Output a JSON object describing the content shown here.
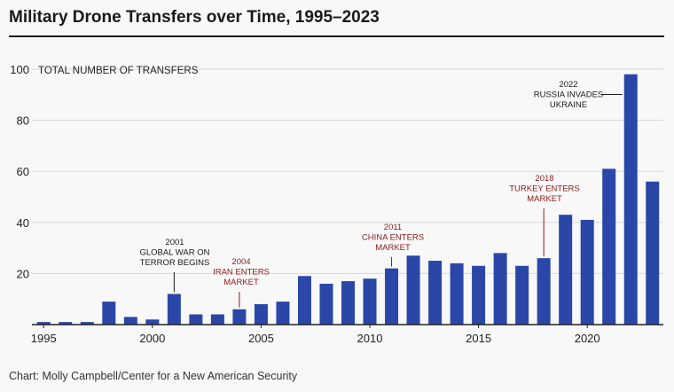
{
  "title": "Military Drone Transfers over Time, 1995–2023",
  "source": "Chart: Molly Campbell/Center for a New American Security",
  "colors": {
    "bar": "#2a47a8",
    "annotation_dark": "#1a1a1a",
    "annotation_red": "#8b1a1a",
    "grid": "#d9d9d9",
    "background": "#f8f8f8"
  },
  "chart_data": {
    "type": "bar",
    "ylabel": "TOTAL NUMBER OF TRANSFERS",
    "ylim": [
      0,
      100
    ],
    "yticks": [
      20,
      40,
      60,
      80,
      100
    ],
    "xticks": [
      1995,
      2000,
      2005,
      2010,
      2015,
      2020
    ],
    "grid": true,
    "categories": [
      1995,
      1996,
      1997,
      1998,
      1999,
      2000,
      2001,
      2002,
      2003,
      2004,
      2005,
      2006,
      2007,
      2008,
      2009,
      2010,
      2011,
      2012,
      2013,
      2014,
      2015,
      2016,
      2017,
      2018,
      2019,
      2020,
      2021,
      2022,
      2023
    ],
    "values": [
      1,
      1,
      1,
      9,
      3,
      2,
      12,
      4,
      4,
      6,
      8,
      9,
      19,
      16,
      17,
      18,
      22,
      27,
      25,
      24,
      23,
      28,
      23,
      26,
      43,
      41,
      61,
      98,
      56
    ],
    "annotations": [
      {
        "x": 2001,
        "lines": [
          "2001",
          "GLOBAL WAR ON",
          "TERROR BEGINS"
        ],
        "color": "dark"
      },
      {
        "x": 2004,
        "lines": [
          "2004",
          "IRAN ENTERS",
          "MARKET"
        ],
        "color": "red"
      },
      {
        "x": 2011,
        "lines": [
          "2011",
          "CHINA ENTERS",
          "MARKET"
        ],
        "color": "red"
      },
      {
        "x": 2018,
        "lines": [
          "2018",
          "TURKEY ENTERS",
          "MARKET"
        ],
        "color": "red"
      },
      {
        "x": 2022,
        "lines": [
          "2022",
          "RUSSIA INVADES",
          "UKRAINE"
        ],
        "color": "dark"
      }
    ]
  }
}
